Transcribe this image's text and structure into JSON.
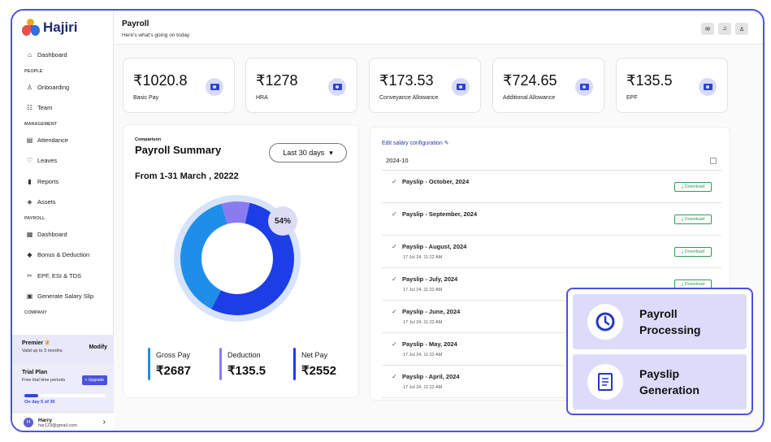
{
  "app": {
    "name": "Hajiri"
  },
  "sidebar": {
    "sections": [
      {
        "label": "",
        "items": [
          {
            "label": "Dashboard",
            "icon": "home-icon"
          }
        ]
      },
      {
        "label": "PEOPLE",
        "items": [
          {
            "label": "Onboarding",
            "icon": "user-plus-icon"
          },
          {
            "label": "Team",
            "icon": "team-icon"
          }
        ]
      },
      {
        "label": "MANAGEMENT",
        "items": [
          {
            "label": "Attendance",
            "icon": "calendar-icon"
          },
          {
            "label": "Leaves",
            "icon": "leaf-icon"
          },
          {
            "label": "Reports",
            "icon": "chart-icon"
          },
          {
            "label": "Assets",
            "icon": "box-icon"
          }
        ]
      },
      {
        "label": "PAYROLL",
        "items": [
          {
            "label": "Dashboard",
            "icon": "grid-icon"
          },
          {
            "label": "Bonus & Deduction",
            "icon": "bonus-icon"
          },
          {
            "label": "EPF, ESI & TDS",
            "icon": "tools-icon"
          },
          {
            "label": "Generate Salary Slip",
            "icon": "document-icon"
          }
        ]
      },
      {
        "label": "COMPANY",
        "items": []
      }
    ],
    "premier": {
      "title": "Premier",
      "subtitle": "Valid up to 3 months",
      "modify": "Modify"
    },
    "trial": {
      "title": "Trial Plan",
      "subtitle": "Free trial time periods",
      "upgrade": "+ Upgrade",
      "progress": 0.17,
      "day_text": "On day 5 of 30"
    },
    "user": {
      "initial": "H",
      "name": "Harry",
      "email": "har123@gmail.com"
    }
  },
  "header": {
    "title": "Payroll",
    "subtitle": "Here's what's going on today."
  },
  "stats": [
    {
      "value": "₹1020.8",
      "label": "Basic Pay"
    },
    {
      "value": "₹1278",
      "label": "HRA"
    },
    {
      "value": "₹173.53",
      "label": "Conveyance Allowance"
    },
    {
      "value": "₹724.65",
      "label": "Additional Allowance"
    },
    {
      "value": "₹135.5",
      "label": "EPF"
    }
  ],
  "summary": {
    "eyebrow": "Comparison",
    "title": "Payroll Summary",
    "range_select": "Last 30 days",
    "range": "From 1-31 March , 20222",
    "badge": "54%",
    "legend": [
      {
        "label": "Gross Pay",
        "value": "₹2687",
        "color": "#1f8ee8"
      },
      {
        "label": "Deduction",
        "value": "₹135.5",
        "color": "#8a7cf0"
      },
      {
        "label": "Net Pay",
        "value": "₹2552",
        "color": "#1d3de6"
      }
    ]
  },
  "chart_data": {
    "type": "pie",
    "title": "Payroll Summary",
    "categories": [
      "Net Pay",
      "Gross Pay",
      "Deduction"
    ],
    "values": [
      54,
      38,
      8
    ],
    "colors": [
      "#1d3de6",
      "#1f8ee8",
      "#8a7cf0"
    ],
    "center_label": "54%"
  },
  "payslips": {
    "edit_label": "Edit salary configuration",
    "period": "2024-10",
    "download_label": "⤓ Download",
    "rows": [
      {
        "name": "Payslip - October, 2024",
        "date": ""
      },
      {
        "name": "Payslip - September, 2024",
        "date": ""
      },
      {
        "name": "Payslip - August, 2024",
        "date": "17 Jul 24, 11:22 AM"
      },
      {
        "name": "Payslip - July, 2024",
        "date": "17 Jul 24, 11:22 AM"
      },
      {
        "name": "Payslip - June, 2024",
        "date": "17 Jul 24, 11:22 AM"
      },
      {
        "name": "Payslip - May, 2024",
        "date": "17 Jul 24, 11:22 AM"
      },
      {
        "name": "Payslip - April, 2024",
        "date": "17 Jul 24, 11:22 AM"
      }
    ]
  },
  "overlay": [
    {
      "label": "Payroll Processing",
      "icon": "payroll-processing-icon"
    },
    {
      "label": "Payslip Generation",
      "icon": "payslip-generation-icon"
    }
  ]
}
